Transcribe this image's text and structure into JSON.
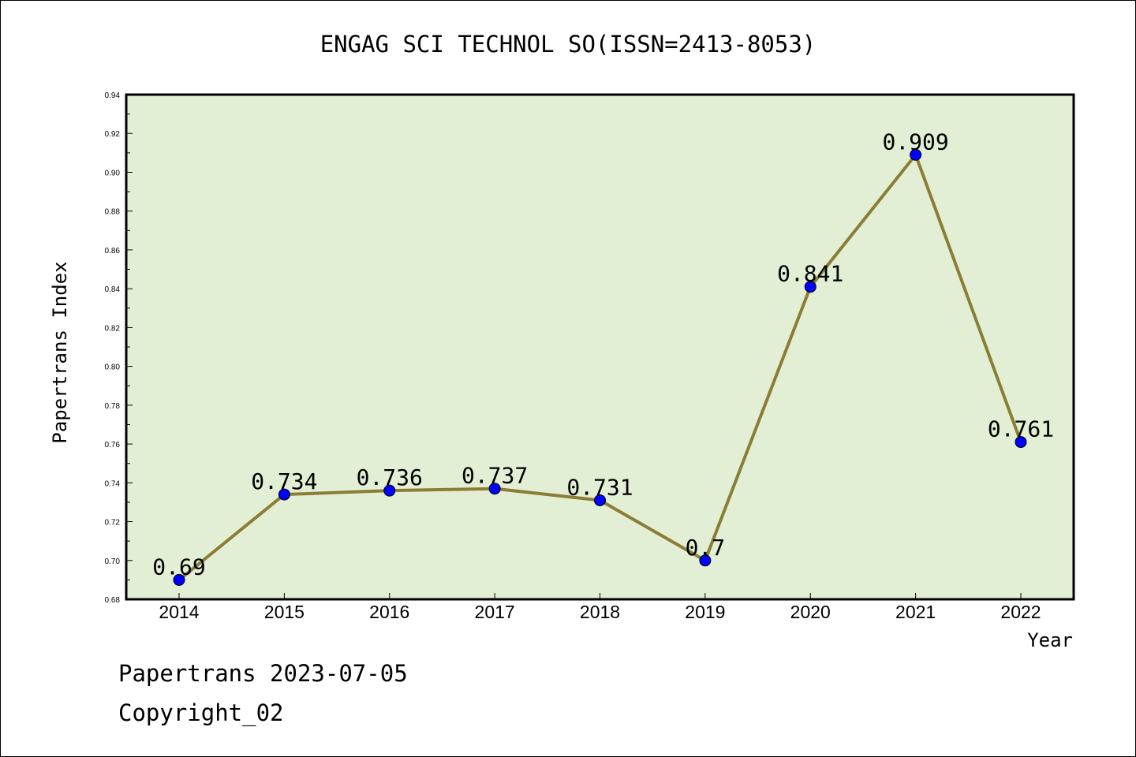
{
  "chart_data": {
    "type": "line",
    "title": "ENGAG SCI TECHNOL SO(ISSN=2413-8053)",
    "xlabel": "Year",
    "ylabel": "Papertrans Index",
    "categories": [
      "2014",
      "2015",
      "2016",
      "2017",
      "2018",
      "2019",
      "2020",
      "2021",
      "2022"
    ],
    "values": [
      0.69,
      0.734,
      0.736,
      0.737,
      0.731,
      0.7,
      0.841,
      0.909,
      0.761
    ],
    "data_labels": [
      "0.69",
      "0.734",
      "0.736",
      "0.737",
      "0.731",
      "0.7",
      "0.841",
      "0.909",
      "0.761"
    ],
    "ylim": [
      0.68,
      0.94
    ],
    "yticks": [
      "0.68",
      "0.70",
      "0.72",
      "0.74",
      "0.76",
      "0.78",
      "0.80",
      "0.82",
      "0.84",
      "0.86",
      "0.88",
      "0.90",
      "0.92",
      "0.94"
    ],
    "grid": false,
    "colors": {
      "plot_background": "#e2efd5",
      "line": "#8b7d35",
      "marker": "#0000ff"
    }
  },
  "footer": {
    "date_line": "Papertrans 2023-07-05",
    "copyright": "Copyright_02"
  }
}
